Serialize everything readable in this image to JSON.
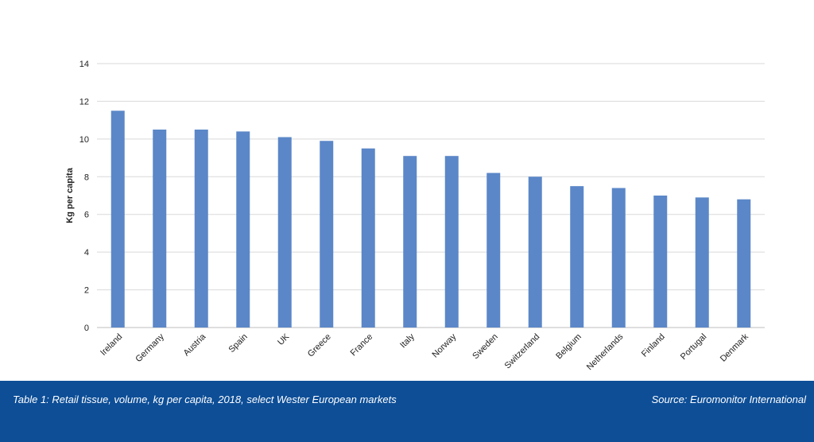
{
  "chart_data": {
    "type": "bar",
    "title": "",
    "xlabel": "",
    "ylabel": "Kg per capita",
    "ylim": [
      0,
      14
    ],
    "yticks": [
      0,
      2,
      4,
      6,
      8,
      10,
      12,
      14
    ],
    "grid": true,
    "legend": "none",
    "bar_color": "#5b87c8",
    "categories": [
      "Ireland",
      "Germany",
      "Austria",
      "Spain",
      "UK",
      "Greece",
      "France",
      "Italy",
      "Norway",
      "Sweden",
      "Switzerland",
      "Belgium",
      "Netherlands",
      "Finland",
      "Portugal",
      "Denmark"
    ],
    "values": [
      11.5,
      10.5,
      10.5,
      10.4,
      10.1,
      9.9,
      9.5,
      9.1,
      9.1,
      8.2,
      8.0,
      7.5,
      7.4,
      7.0,
      6.9,
      6.8
    ]
  },
  "footer": {
    "caption": "Table 1: Retail tissue, volume, kg per capita, 2018, select Wester European markets",
    "source": "Source: Euromonitor International",
    "background": "#0d4e97"
  }
}
